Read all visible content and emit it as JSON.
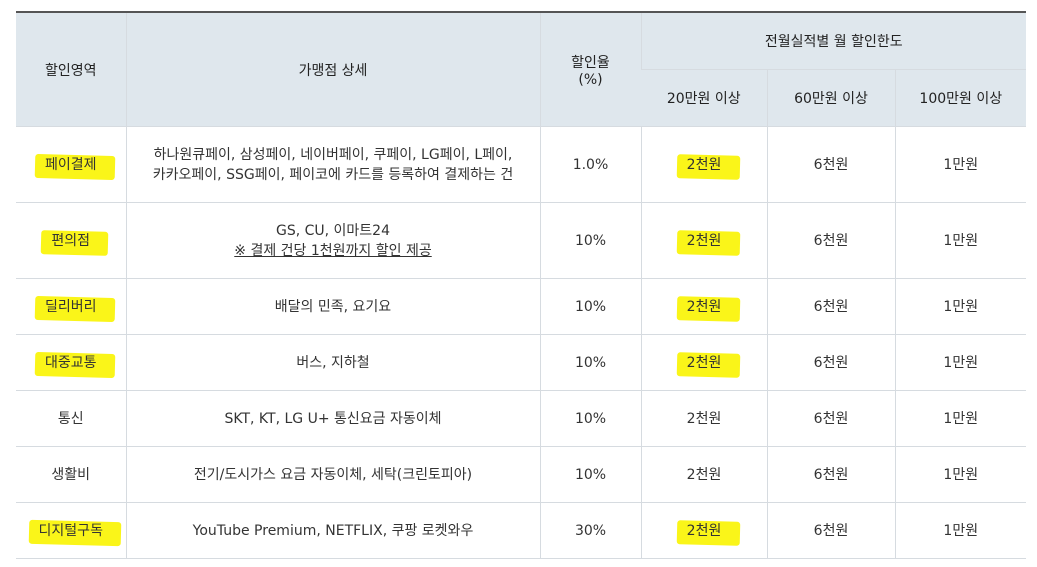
{
  "header": {
    "col_area": "할인영역",
    "col_detail": "가맹점 상세",
    "col_rate_line1": "할인율",
    "col_rate_line2": "(%)",
    "col_limit": "전월실적별 월 할인한도",
    "tiers": [
      "20만원 이상",
      "60만원 이상",
      "100만원 이상"
    ]
  },
  "rows": [
    {
      "area": "페이결제",
      "detail1": "하나원큐페이, 삼성페이, 네이버페이, 쿠페이, LG페이, L페이,",
      "detail2": "카카오페이, SSG페이, 페이코에 카드를 등록하여 결제하는 건",
      "rate": "1.0%",
      "t1": "2천원",
      "t2": "6천원",
      "t3": "1만원",
      "highlight": true
    },
    {
      "area": "편의점",
      "detail1": "GS, CU, 이마트24",
      "detail2": "※ 결제 건당 1천원까지 할인 제공",
      "rate": "10%",
      "t1": "2천원",
      "t2": "6천원",
      "t3": "1만원",
      "highlight": true
    },
    {
      "area": "딜리버리",
      "detail1": "배달의 민족, 요기요",
      "rate": "10%",
      "t1": "2천원",
      "t2": "6천원",
      "t3": "1만원",
      "highlight": true
    },
    {
      "area": "대중교통",
      "detail1": "버스, 지하철",
      "rate": "10%",
      "t1": "2천원",
      "t2": "6천원",
      "t3": "1만원",
      "highlight": true
    },
    {
      "area": "통신",
      "detail1": "SKT, KT, LG U+ 통신요금 자동이체",
      "rate": "10%",
      "t1": "2천원",
      "t2": "6천원",
      "t3": "1만원",
      "highlight": false
    },
    {
      "area": "생활비",
      "detail1": "전기/도시가스 요금 자동이체, 세탁(크린토피아)",
      "rate": "10%",
      "t1": "2천원",
      "t2": "6천원",
      "t3": "1만원",
      "highlight": false
    },
    {
      "area": "디지털구독",
      "detail1": "YouTube Premium, NETFLIX, 쿠팡 로켓와우",
      "rate": "30%",
      "t1": "2천원",
      "t2": "6천원",
      "t3": "1만원",
      "highlight": true
    }
  ],
  "highlight_color": "#f9f400"
}
